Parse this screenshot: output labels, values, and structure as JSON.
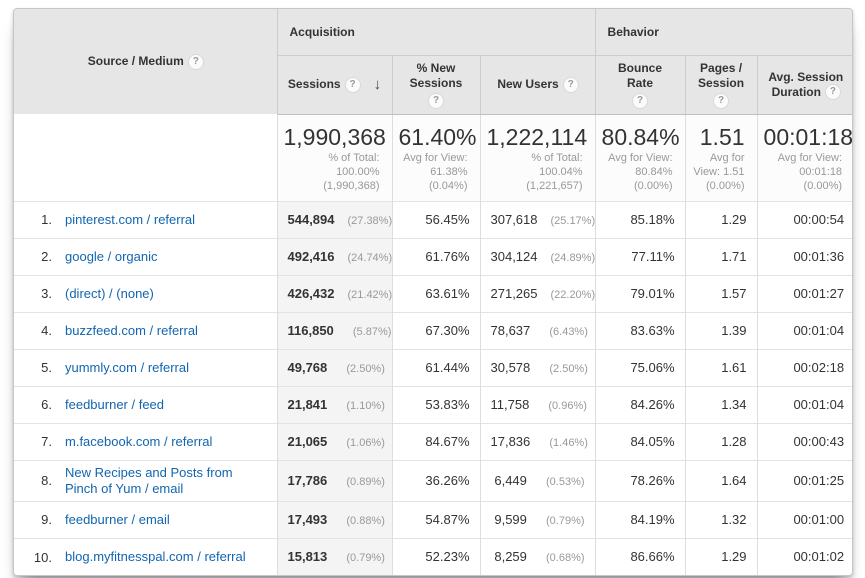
{
  "colors": {
    "link": "#1265b0",
    "header_bg": "#e6e6e6",
    "sorted_col_bg": "#f4f4f4",
    "pct_gray": "#999999"
  },
  "table": {
    "help_glyph": "?",
    "sort_arrow": "↓",
    "source_header": "Source / Medium",
    "groups": {
      "acquisition": "Acquisition",
      "behavior": "Behavior"
    },
    "columns": {
      "sessions": "Sessions",
      "new_sessions": "% New Sessions",
      "new_users": "New Users",
      "bounce_rate": "Bounce Rate",
      "pages_session": "Pages / Session",
      "avg_duration": "Avg. Session Duration"
    },
    "summary": {
      "sessions": {
        "value": "1,990,368",
        "sub": [
          "% of Total:",
          "100.00%",
          "(1,990,368)"
        ]
      },
      "new_sessions": {
        "value": "61.40%",
        "sub": [
          "Avg for View:",
          "61.38%",
          "(0.04%)"
        ]
      },
      "new_users": {
        "value": "1,222,114",
        "sub": [
          "% of Total:",
          "100.04%",
          "(1,221,657)"
        ]
      },
      "bounce_rate": {
        "value": "80.84%",
        "sub": [
          "Avg for View:",
          "80.84%",
          "(0.00%)"
        ]
      },
      "pages_session": {
        "value": "1.51",
        "sub": [
          "Avg for",
          "View: 1.51",
          "(0.00%)"
        ]
      },
      "avg_duration": {
        "value": "00:01:18",
        "sub": [
          "Avg for View:",
          "00:01:18",
          "(0.00%)"
        ]
      }
    },
    "rows": [
      {
        "index": "1.",
        "source": "pinterest.com / referral",
        "sessions": "544,894",
        "sessions_pct": "(27.38%)",
        "new_sessions": "56.45%",
        "new_users": "307,618",
        "new_users_pct": "(25.17%)",
        "bounce": "85.18%",
        "pages": "1.29",
        "duration": "00:00:54"
      },
      {
        "index": "2.",
        "source": "google / organic",
        "sessions": "492,416",
        "sessions_pct": "(24.74%)",
        "new_sessions": "61.76%",
        "new_users": "304,124",
        "new_users_pct": "(24.89%)",
        "bounce": "77.11%",
        "pages": "1.71",
        "duration": "00:01:36"
      },
      {
        "index": "3.",
        "source": "(direct) / (none)",
        "sessions": "426,432",
        "sessions_pct": "(21.42%)",
        "new_sessions": "63.61%",
        "new_users": "271,265",
        "new_users_pct": "(22.20%)",
        "bounce": "79.01%",
        "pages": "1.57",
        "duration": "00:01:27"
      },
      {
        "index": "4.",
        "source": "buzzfeed.com / referral",
        "sessions": "116,850",
        "sessions_pct": "(5.87%)",
        "new_sessions": "67.30%",
        "new_users": "78,637",
        "new_users_pct": "(6.43%)",
        "bounce": "83.63%",
        "pages": "1.39",
        "duration": "00:01:04"
      },
      {
        "index": "5.",
        "source": "yummly.com / referral",
        "sessions": "49,768",
        "sessions_pct": "(2.50%)",
        "new_sessions": "61.44%",
        "new_users": "30,578",
        "new_users_pct": "(2.50%)",
        "bounce": "75.06%",
        "pages": "1.61",
        "duration": "00:02:18"
      },
      {
        "index": "6.",
        "source": "feedburner / feed",
        "sessions": "21,841",
        "sessions_pct": "(1.10%)",
        "new_sessions": "53.83%",
        "new_users": "11,758",
        "new_users_pct": "(0.96%)",
        "bounce": "84.26%",
        "pages": "1.34",
        "duration": "00:01:04"
      },
      {
        "index": "7.",
        "source": "m.facebook.com / referral",
        "sessions": "21,065",
        "sessions_pct": "(1.06%)",
        "new_sessions": "84.67%",
        "new_users": "17,836",
        "new_users_pct": "(1.46%)",
        "bounce": "84.05%",
        "pages": "1.28",
        "duration": "00:00:43"
      },
      {
        "index": "8.",
        "source": "New Recipes and Posts from Pinch of Yum / email",
        "sessions": "17,786",
        "sessions_pct": "(0.89%)",
        "new_sessions": "36.26%",
        "new_users": "6,449",
        "new_users_pct": "(0.53%)",
        "bounce": "78.26%",
        "pages": "1.64",
        "duration": "00:01:25"
      },
      {
        "index": "9.",
        "source": "feedburner / email",
        "sessions": "17,493",
        "sessions_pct": "(0.88%)",
        "new_sessions": "54.87%",
        "new_users": "9,599",
        "new_users_pct": "(0.79%)",
        "bounce": "84.19%",
        "pages": "1.32",
        "duration": "00:01:00"
      },
      {
        "index": "10.",
        "source": "blog.myfitnesspal.com / referral",
        "sessions": "15,813",
        "sessions_pct": "(0.79%)",
        "new_sessions": "52.23%",
        "new_users": "8,259",
        "new_users_pct": "(0.68%)",
        "bounce": "86.66%",
        "pages": "1.29",
        "duration": "00:01:02"
      }
    ]
  }
}
